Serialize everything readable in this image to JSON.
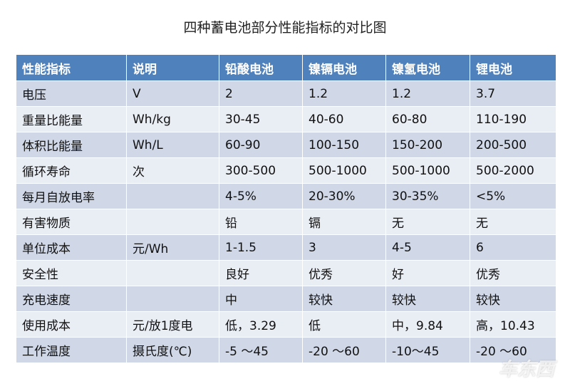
{
  "title": "四种蓄电池部分性能指标的对比图",
  "table": {
    "header": [
      "性能指标",
      "说明",
      "铅酸电池",
      "镍镉电池",
      "镍氢电池",
      "锂电池"
    ],
    "rows": [
      [
        "电压",
        "V",
        "2",
        "1.2",
        "1.2",
        "3.7"
      ],
      [
        "重量比能量",
        "Wh/kg",
        "30-45",
        "40-60",
        "60-80",
        "110-190"
      ],
      [
        "体积比能量",
        "Wh/L",
        "60-90",
        "100-150",
        "150-200",
        "200-500"
      ],
      [
        "循环寿命",
        "次",
        "300-500",
        "500-1000",
        "500-1000",
        "500-2000"
      ],
      [
        "每月自放电率",
        null,
        "4-5%",
        "20-30%",
        "30-35%",
        "<5%"
      ],
      [
        "有害物质",
        null,
        "铅",
        "镉",
        "无",
        "无"
      ],
      [
        "单位成本",
        "元/Wh",
        "1-1.5",
        "3",
        "4-5",
        "6"
      ],
      [
        "安全性",
        null,
        "良好",
        "优秀",
        "好",
        "优秀"
      ],
      [
        "充电速度",
        null,
        "中",
        "较快",
        "较快",
        "较快"
      ],
      [
        "使用成本",
        "元/放1度电",
        "低，3.29",
        "低",
        "中，9.84",
        "高，10.43"
      ],
      [
        "工作温度",
        "摄氏度(℃)",
        "-5 ～45",
        "-20 ～60",
        "-10～45",
        "-20 ～60"
      ]
    ]
  },
  "watermark": "车东西"
}
